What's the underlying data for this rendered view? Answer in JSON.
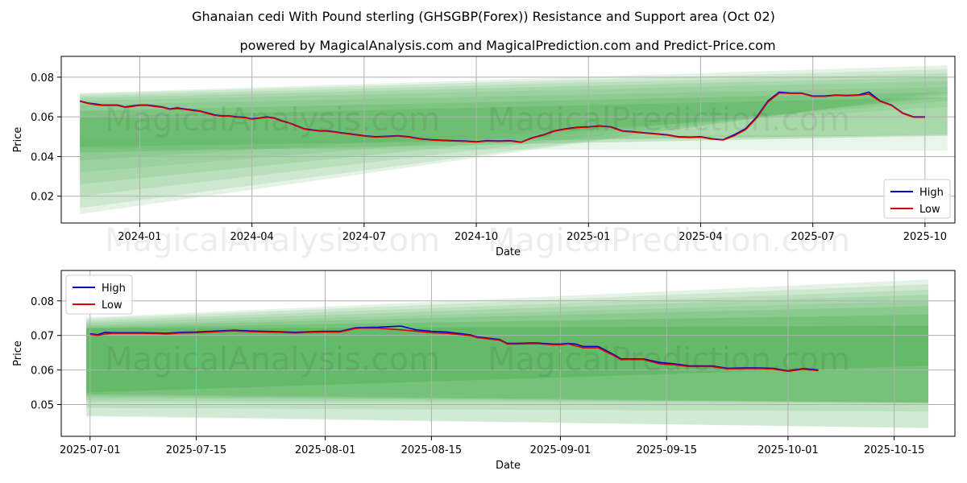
{
  "titles": {
    "main": "Ghanaian cedi With Pound sterling (GHSGBP(Forex)) Resistance and Support area (Oct 02)",
    "sub": "powered by MagicalAnalysis.com and MagicalPrediction.com and Predict-Price.com"
  },
  "watermarks": [
    "MagicalAnalysis.com",
    "MagicalPrediction.com"
  ],
  "colors": {
    "high": "#0000cc",
    "low": "#dd0000",
    "band": "#4caf50",
    "grid": "#b0b0b0"
  },
  "chart_data": [
    {
      "type": "line",
      "name": "top-chart",
      "xlabel": "Date",
      "ylabel": "Price",
      "x_unit": "months since 2024-01",
      "xlim": [
        -2.1,
        21.8
      ],
      "ylim": [
        0.0065,
        0.0905
      ],
      "x_ticks": [
        {
          "v": 0,
          "label": "2024-01"
        },
        {
          "v": 3,
          "label": "2024-04"
        },
        {
          "v": 6,
          "label": "2024-07"
        },
        {
          "v": 9,
          "label": "2024-10"
        },
        {
          "v": 12,
          "label": "2025-01"
        },
        {
          "v": 15,
          "label": "2025-04"
        },
        {
          "v": 18,
          "label": "2025-07"
        },
        {
          "v": 21,
          "label": "2025-10"
        }
      ],
      "y_ticks": [
        {
          "v": 0.02,
          "label": "0.02"
        },
        {
          "v": 0.04,
          "label": "0.04"
        },
        {
          "v": 0.06,
          "label": "0.06"
        },
        {
          "v": 0.08,
          "label": "0.08"
        }
      ],
      "legend": {
        "position": "lower-right",
        "entries": [
          "High",
          "Low"
        ]
      },
      "bands": {
        "x_start": -1.6,
        "x_end": 21.6,
        "layers": [
          {
            "opacity": 0.15,
            "start": [
              0.011,
              0.072
            ],
            "end": [
              0.073,
              0.086
            ]
          },
          {
            "opacity": 0.15,
            "start": [
              0.014,
              0.0715
            ],
            "end": [
              0.072,
              0.084
            ]
          },
          {
            "opacity": 0.15,
            "start": [
              0.02,
              0.0705
            ],
            "end": [
              0.071,
              0.082
            ]
          },
          {
            "opacity": 0.15,
            "start": [
              0.026,
              0.0695
            ],
            "end": [
              0.07,
              0.08
            ]
          },
          {
            "opacity": 0.15,
            "start": [
              0.032,
              0.068
            ],
            "end": [
              0.068,
              0.078
            ]
          },
          {
            "opacity": 0.15,
            "start": [
              0.038,
              0.066
            ],
            "end": [
              0.065,
              0.075
            ]
          },
          {
            "opacity": 0.25,
            "start": [
              0.042,
              0.063
            ],
            "end": [
              0.0505,
              0.0725
            ]
          },
          {
            "opacity": 0.3,
            "start": [
              0.045,
              0.06
            ],
            "end": [
              0.051,
              0.07
            ]
          }
        ],
        "bottom_fan": {
          "opacity": 0.12,
          "start": [
            0.044,
            0.05
          ],
          "end": [
            0.043,
            0.051
          ]
        }
      },
      "series": [
        {
          "name": "High",
          "x": [
            -1.6,
            -1.4,
            -1.2,
            -1,
            -0.8,
            -0.6,
            -0.4,
            -0.2,
            0,
            0.2,
            0.4,
            0.6,
            0.8,
            1,
            1.2,
            1.4,
            1.6,
            1.8,
            2,
            2.2,
            2.4,
            2.6,
            2.8,
            3,
            3.2,
            3.4,
            3.6,
            3.8,
            4,
            4.2,
            4.4,
            4.6,
            4.8,
            5,
            5.2,
            5.4,
            5.6,
            5.8,
            6,
            6.3,
            6.6,
            6.9,
            7.2,
            7.5,
            7.8,
            8.1,
            8.4,
            8.7,
            9,
            9.3,
            9.6,
            9.9,
            10.2,
            10.5,
            10.8,
            11.1,
            11.4,
            11.7,
            12,
            12.3,
            12.6,
            12.9,
            13.2,
            13.5,
            13.8,
            14.1,
            14.4,
            14.7,
            15,
            15.3,
            15.6,
            15.9,
            16.2,
            16.5,
            16.8,
            17.1,
            17.4,
            17.7,
            18,
            18.3,
            18.6,
            18.9,
            19.2,
            19.5,
            19.8,
            20.1,
            20.4,
            20.7,
            21
          ],
          "values": [
            0.068,
            0.067,
            0.0665,
            0.066,
            0.066,
            0.066,
            0.065,
            0.0655,
            0.066,
            0.066,
            0.0655,
            0.065,
            0.064,
            0.0645,
            0.064,
            0.0635,
            0.063,
            0.062,
            0.061,
            0.0605,
            0.0605,
            0.06,
            0.0598,
            0.059,
            0.0595,
            0.06,
            0.0595,
            0.058,
            0.057,
            0.0555,
            0.054,
            0.0535,
            0.053,
            0.053,
            0.0525,
            0.052,
            0.0515,
            0.051,
            0.0505,
            0.05,
            0.0502,
            0.0505,
            0.05,
            0.049,
            0.0485,
            0.0482,
            0.048,
            0.0478,
            0.0475,
            0.048,
            0.0478,
            0.048,
            0.0473,
            0.0495,
            0.051,
            0.053,
            0.054,
            0.0548,
            0.055,
            0.0555,
            0.055,
            0.053,
            0.0525,
            0.052,
            0.0515,
            0.051,
            0.05,
            0.0498,
            0.05,
            0.049,
            0.0485,
            0.051,
            0.054,
            0.06,
            0.068,
            0.0725,
            0.072,
            0.072,
            0.0705,
            0.0705,
            0.071,
            0.0708,
            0.071,
            0.0725,
            0.068,
            0.066,
            0.062,
            0.06,
            0.06
          ]
        },
        {
          "name": "Low",
          "x": [
            -1.6,
            -1.4,
            -1.2,
            -1,
            -0.8,
            -0.6,
            -0.4,
            -0.2,
            0,
            0.2,
            0.4,
            0.6,
            0.8,
            1,
            1.2,
            1.4,
            1.6,
            1.8,
            2,
            2.2,
            2.4,
            2.6,
            2.8,
            3,
            3.2,
            3.4,
            3.6,
            3.8,
            4,
            4.2,
            4.4,
            4.6,
            4.8,
            5,
            5.2,
            5.4,
            5.6,
            5.8,
            6,
            6.3,
            6.6,
            6.9,
            7.2,
            7.5,
            7.8,
            8.1,
            8.4,
            8.7,
            9,
            9.3,
            9.6,
            9.9,
            10.2,
            10.5,
            10.8,
            11.1,
            11.4,
            11.7,
            12,
            12.3,
            12.6,
            12.9,
            13.2,
            13.5,
            13.8,
            14.1,
            14.4,
            14.7,
            15,
            15.3,
            15.6,
            15.9,
            16.2,
            16.5,
            16.8,
            17.1,
            17.4,
            17.7,
            18,
            18.3,
            18.6,
            18.9,
            19.2,
            19.5,
            19.8,
            20.1,
            20.4,
            20.7,
            21
          ],
          "values": [
            0.0678,
            0.0668,
            0.0662,
            0.0658,
            0.0658,
            0.0658,
            0.0648,
            0.0652,
            0.0658,
            0.0658,
            0.0652,
            0.0648,
            0.0638,
            0.0642,
            0.0638,
            0.0632,
            0.0628,
            0.0618,
            0.0608,
            0.0603,
            0.0603,
            0.0598,
            0.0596,
            0.0588,
            0.0593,
            0.0598,
            0.0593,
            0.0578,
            0.0568,
            0.0553,
            0.0538,
            0.0533,
            0.0528,
            0.0528,
            0.0523,
            0.0518,
            0.0513,
            0.0508,
            0.0503,
            0.0498,
            0.05,
            0.0503,
            0.0498,
            0.0488,
            0.0483,
            0.048,
            0.0478,
            0.0476,
            0.0473,
            0.0478,
            0.0476,
            0.0478,
            0.0471,
            0.0493,
            0.0508,
            0.0528,
            0.0538,
            0.0546,
            0.0548,
            0.0553,
            0.0548,
            0.0528,
            0.0523,
            0.0518,
            0.0513,
            0.0508,
            0.0498,
            0.0496,
            0.0498,
            0.0488,
            0.0483,
            0.0505,
            0.0535,
            0.0595,
            0.0675,
            0.072,
            0.0718,
            0.0718,
            0.0703,
            0.0703,
            0.0708,
            0.0706,
            0.0708,
            0.0715,
            0.0678,
            0.0658,
            0.0618,
            0.0598,
            0.0598
          ]
        }
      ]
    },
    {
      "type": "line",
      "name": "bottom-chart",
      "xlabel": "Date",
      "ylabel": "Price",
      "x_unit": "days since 2025-07-01",
      "xlim": [
        -3.8,
        114.0
      ],
      "ylim": [
        0.0408,
        0.0888
      ],
      "x_ticks": [
        {
          "v": 0,
          "label": "2025-07-01"
        },
        {
          "v": 14,
          "label": "2025-07-15"
        },
        {
          "v": 31,
          "label": "2025-08-01"
        },
        {
          "v": 45,
          "label": "2025-08-15"
        },
        {
          "v": 62,
          "label": "2025-09-01"
        },
        {
          "v": 76,
          "label": "2025-09-15"
        },
        {
          "v": 92,
          "label": "2025-10-01"
        },
        {
          "v": 106,
          "label": "2025-10-15"
        }
      ],
      "y_ticks": [
        {
          "v": 0.05,
          "label": "0.05"
        },
        {
          "v": 0.06,
          "label": "0.06"
        },
        {
          "v": 0.07,
          "label": "0.07"
        },
        {
          "v": 0.08,
          "label": "0.08"
        }
      ],
      "legend": {
        "position": "upper-left",
        "entries": [
          "High",
          "Low"
        ]
      },
      "bands": {
        "x_start": -0.5,
        "x_end": 110.5,
        "layers": [
          {
            "opacity": 0.15,
            "start": [
              0.0468,
              0.0752
            ],
            "end": [
              0.0432,
              0.0862
            ]
          },
          {
            "opacity": 0.15,
            "start": [
              0.049,
              0.0748
            ],
            "end": [
              0.048,
              0.0848
            ]
          },
          {
            "opacity": 0.15,
            "start": [
              0.0505,
              0.0742
            ],
            "end": [
              0.05,
              0.0832
            ]
          },
          {
            "opacity": 0.15,
            "start": [
              0.0512,
              0.0736
            ],
            "end": [
              0.0505,
              0.0818
            ]
          },
          {
            "opacity": 0.15,
            "start": [
              0.052,
              0.073
            ],
            "end": [
              0.0505,
              0.08
            ]
          },
          {
            "opacity": 0.2,
            "start": [
              0.0525,
              0.0726
            ],
            "end": [
              0.0505,
              0.0785
            ]
          },
          {
            "opacity": 0.3,
            "start": [
              0.053,
              0.0722
            ],
            "end": [
              0.0505,
              0.076
            ]
          },
          {
            "opacity": 0.4,
            "start": [
              0.0535,
              0.072
            ],
            "end": [
              0.0612,
              0.0728
            ]
          }
        ],
        "bottom_fan": {
          "opacity": 0.12,
          "start": [
            0.0465,
            0.05
          ],
          "end": [
            0.0432,
            0.05
          ]
        }
      },
      "series": [
        {
          "name": "High",
          "x": [
            0,
            1,
            2,
            3,
            5,
            7,
            9,
            10,
            12,
            14,
            16,
            18,
            19,
            21,
            23,
            25,
            27,
            29,
            31,
            33,
            35,
            36,
            38,
            41,
            43,
            45,
            47,
            50,
            51,
            54,
            55,
            56,
            58,
            59,
            61,
            62,
            63,
            64,
            65,
            67,
            69,
            70,
            72,
            73,
            75,
            77,
            79,
            80,
            82,
            84,
            86,
            88,
            90,
            92,
            94,
            96
          ],
          "values": [
            0.0705,
            0.0702,
            0.0709,
            0.0708,
            0.0708,
            0.0708,
            0.0707,
            0.0706,
            0.0709,
            0.071,
            0.0712,
            0.0714,
            0.0715,
            0.0713,
            0.0712,
            0.0711,
            0.0709,
            0.0711,
            0.0712,
            0.0712,
            0.0722,
            0.0723,
            0.0724,
            0.0727,
            0.0716,
            0.0712,
            0.071,
            0.0702,
            0.0696,
            0.0688,
            0.0677,
            0.0677,
            0.0678,
            0.0678,
            0.0675,
            0.0675,
            0.0677,
            0.0675,
            0.0668,
            0.0668,
            0.0645,
            0.0632,
            0.0632,
            0.0632,
            0.0622,
            0.0618,
            0.0612,
            0.0612,
            0.0612,
            0.0605,
            0.0606,
            0.0606,
            0.0605,
            0.0598,
            0.0604,
            0.06
          ]
        },
        {
          "name": "Low",
          "x": [
            0,
            1,
            2,
            3,
            5,
            7,
            9,
            10,
            12,
            14,
            16,
            18,
            19,
            21,
            23,
            25,
            27,
            29,
            31,
            33,
            35,
            36,
            38,
            41,
            43,
            45,
            47,
            50,
            51,
            54,
            55,
            56,
            58,
            59,
            61,
            62,
            63,
            64,
            65,
            67,
            69,
            70,
            72,
            73,
            75,
            77,
            79,
            80,
            82,
            84,
            86,
            88,
            90,
            92,
            94,
            96
          ],
          "values": [
            0.0703,
            0.07,
            0.0704,
            0.0706,
            0.0706,
            0.0706,
            0.0705,
            0.0704,
            0.0707,
            0.0708,
            0.071,
            0.0712,
            0.0713,
            0.0711,
            0.071,
            0.0709,
            0.0707,
            0.0709,
            0.071,
            0.071,
            0.072,
            0.0721,
            0.0721,
            0.0716,
            0.0712,
            0.0708,
            0.0706,
            0.07,
            0.0694,
            0.0686,
            0.0675,
            0.0675,
            0.0676,
            0.0676,
            0.0673,
            0.0673,
            0.0675,
            0.067,
            0.0664,
            0.0664,
            0.0642,
            0.063,
            0.063,
            0.063,
            0.0618,
            0.0615,
            0.061,
            0.061,
            0.061,
            0.0603,
            0.0604,
            0.0604,
            0.0603,
            0.0596,
            0.0602,
            0.0598
          ]
        }
      ]
    }
  ]
}
